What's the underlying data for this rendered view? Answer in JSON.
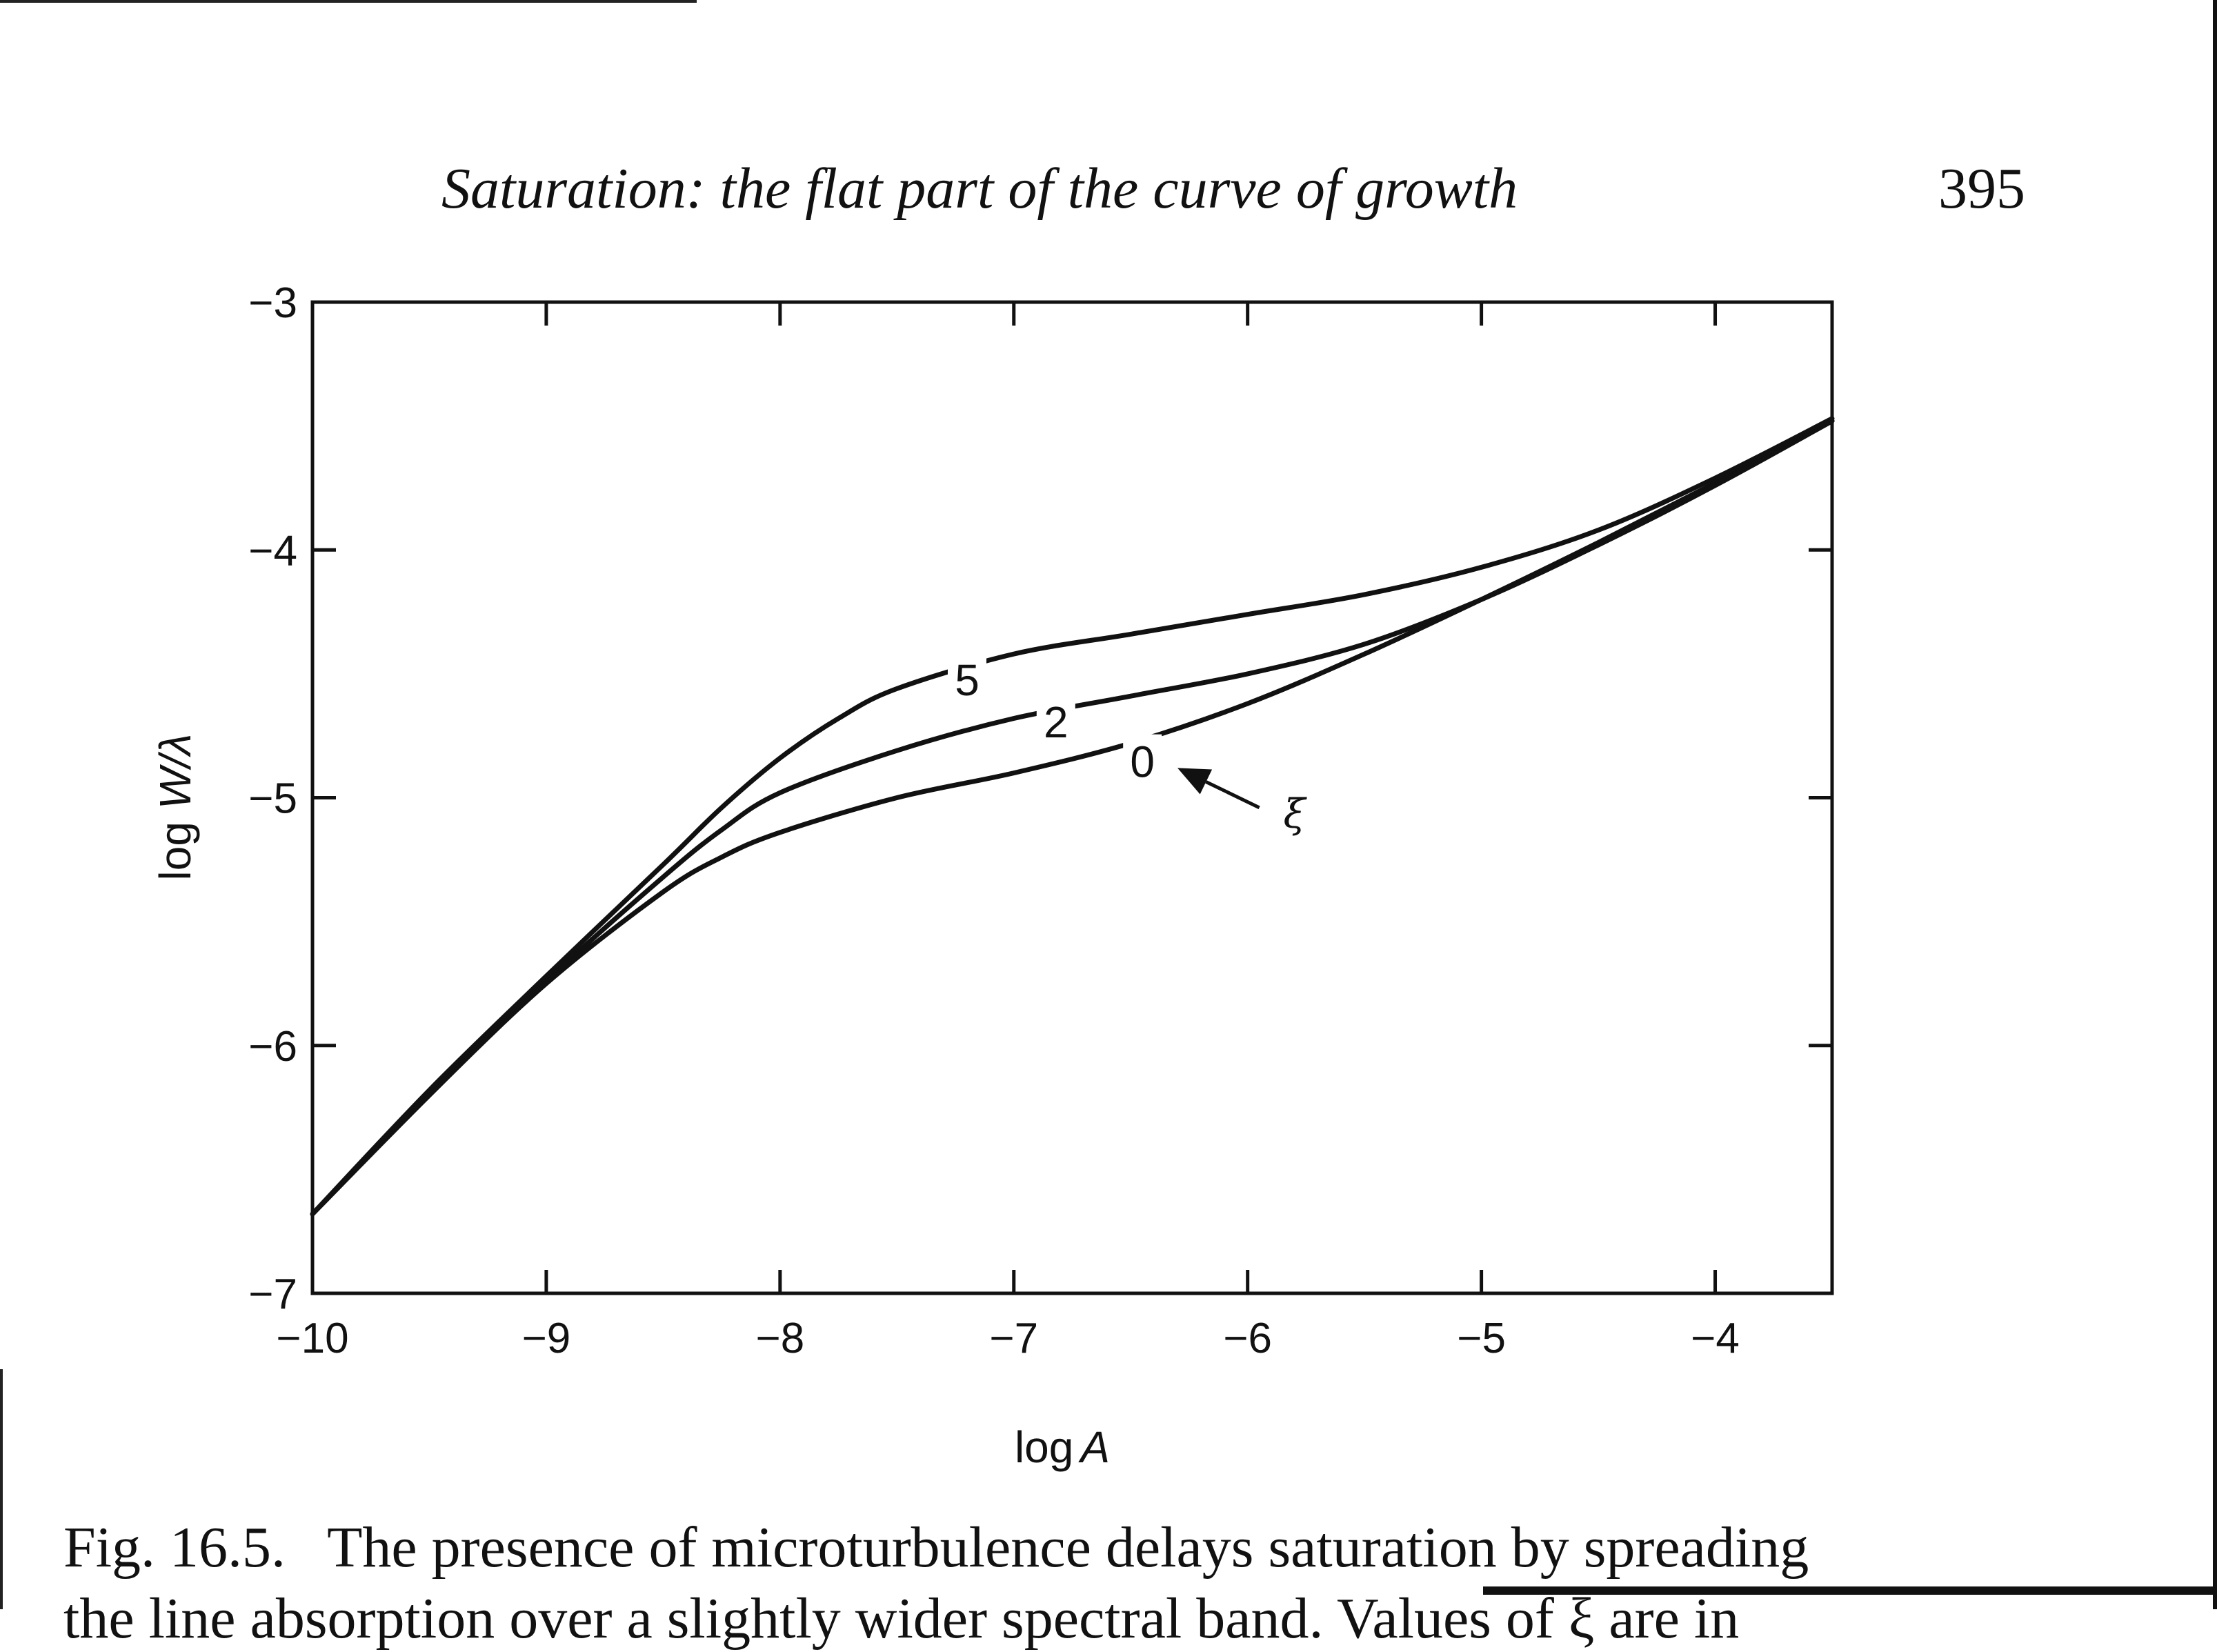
{
  "page": {
    "running_head": "Saturation: the flat part of the curve of growth",
    "page_number": "395",
    "caption_label": "Fig. 16.5.",
    "caption_text": "The presence of microturbulence delays saturation by spreading",
    "caption_line2": "the line absorption over a slightly wider spectral band. Values of ξ are in"
  },
  "chart_data": {
    "type": "line",
    "xlabel_prefix": "log",
    "xlabel_var": "A",
    "ylabel_prefix": "log ",
    "ylabel_var": "W/λ",
    "xlim": [
      -10,
      -3.5
    ],
    "ylim": [
      -7,
      -3
    ],
    "xticks": [
      -10,
      -9,
      -8,
      -7,
      -6,
      -5,
      -4
    ],
    "yticks": [
      -7,
      -6,
      -5,
      -4,
      -3
    ],
    "xtick_labels": [
      "−10",
      "−9",
      "−8",
      "−7",
      "−6",
      "−5",
      "−4"
    ],
    "ytick_labels": [
      "−7",
      "−6",
      "−5",
      "−4",
      "−3"
    ],
    "series": [
      {
        "name": "0",
        "x": [
          -10,
          -9.5,
          -9,
          -8.5,
          -8.25,
          -8,
          -7.5,
          -7,
          -6.5,
          -6,
          -5.5,
          -5,
          -4.5,
          -4,
          -3.5
        ],
        "y": [
          -6.68,
          -6.2,
          -5.75,
          -5.38,
          -5.24,
          -5.14,
          -5.0,
          -4.9,
          -4.78,
          -4.62,
          -4.42,
          -4.2,
          -3.97,
          -3.73,
          -3.48
        ]
      },
      {
        "name": "2",
        "x": [
          -10,
          -9.5,
          -9,
          -8.5,
          -8.25,
          -8,
          -7.5,
          -7,
          -6.5,
          -6,
          -5.5,
          -5,
          -4.5,
          -4,
          -3.5
        ],
        "y": [
          -6.68,
          -6.2,
          -5.74,
          -5.32,
          -5.13,
          -4.98,
          -4.81,
          -4.68,
          -4.59,
          -4.5,
          -4.38,
          -4.2,
          -3.98,
          -3.74,
          -3.48
        ]
      },
      {
        "name": "5",
        "x": [
          -10,
          -9.5,
          -9,
          -8.5,
          -8.25,
          -8,
          -7.75,
          -7.5,
          -7,
          -6.5,
          -6,
          -5.5,
          -5,
          -4.5,
          -4,
          -3.5
        ],
        "y": [
          -6.68,
          -6.18,
          -5.72,
          -5.27,
          -5.04,
          -4.84,
          -4.68,
          -4.56,
          -4.42,
          -4.34,
          -4.26,
          -4.18,
          -4.07,
          -3.92,
          -3.71,
          -3.47
        ]
      }
    ],
    "curve_labels": [
      {
        "text": "5",
        "x": -7.2,
        "y": -4.52
      },
      {
        "text": "2",
        "x": -6.82,
        "y": -4.69
      },
      {
        "text": "0",
        "x": -6.45,
        "y": -4.85
      }
    ],
    "annotation": {
      "text": "ξ",
      "arrow_from": [
        -5.95,
        -5.04
      ],
      "arrow_to": [
        -6.3,
        -4.88
      ],
      "label_at": [
        -5.8,
        -5.12
      ]
    },
    "grid": false,
    "legend": "none"
  }
}
